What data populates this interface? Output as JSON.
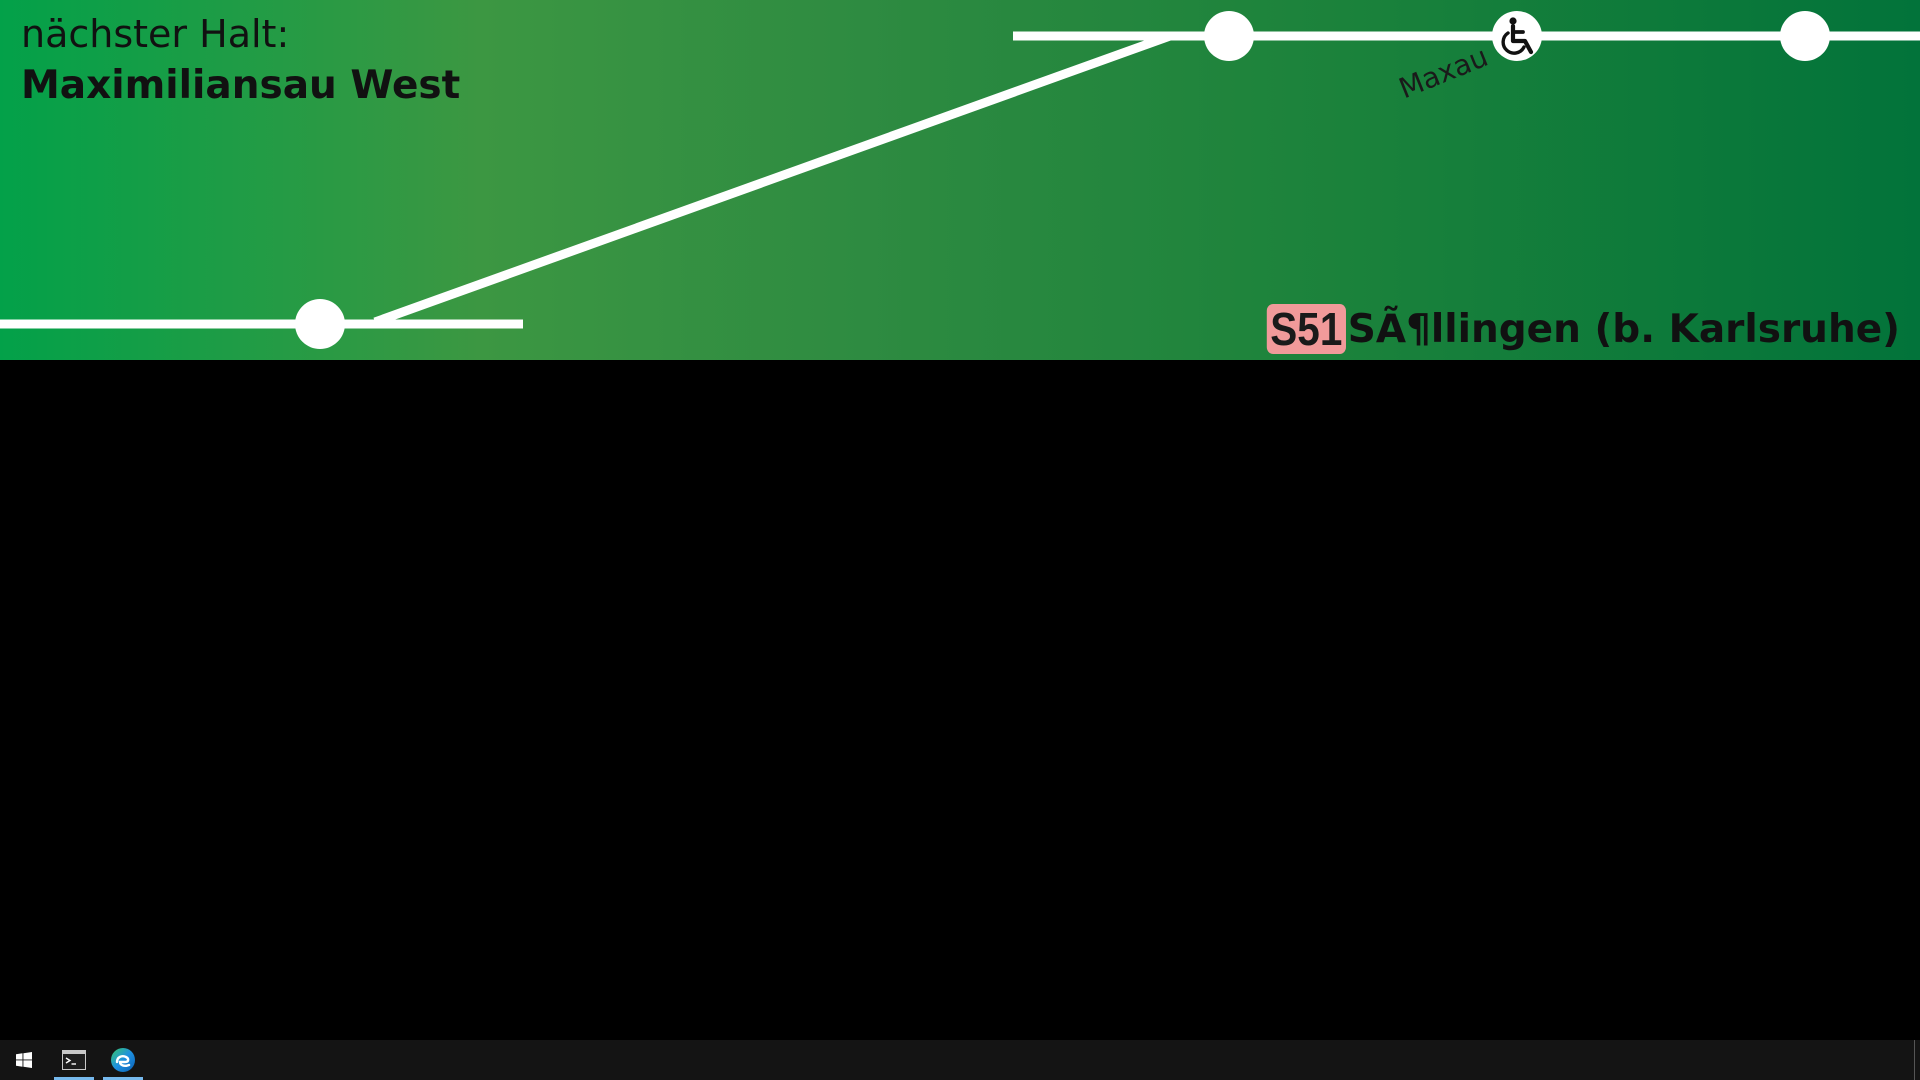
{
  "header": {
    "next_stop_label": "nächster Halt:",
    "next_stop_name": "Maximiliansau West"
  },
  "route_map": {
    "stations": [
      {
        "name": "",
        "accessible": false
      },
      {
        "name": "",
        "accessible": false
      },
      {
        "name": "Maxau",
        "accessible": true
      },
      {
        "name": "",
        "accessible": false
      }
    ]
  },
  "destination": {
    "line": "S51",
    "name": "SÃ¶llingen (b. Karlsruhe)"
  },
  "colors": {
    "gradient_start": "#03a149",
    "gradient_mid": "#3c9742",
    "gradient_end": "#02733a",
    "track": "#ffffff",
    "line_badge": "#f19a9a",
    "taskbar": "#141414"
  },
  "taskbar": {
    "items": [
      {
        "icon": "windows-start-icon",
        "active": false
      },
      {
        "icon": "terminal-icon",
        "active": true
      },
      {
        "icon": "edge-browser-icon",
        "active": true
      }
    ]
  }
}
